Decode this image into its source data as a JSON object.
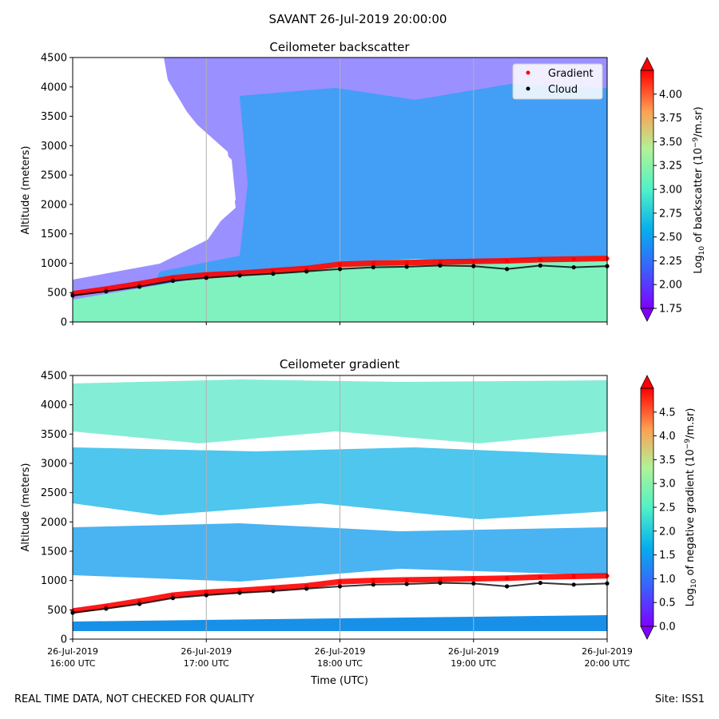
{
  "figure": {
    "title": "SAVANT 26-Jul-2019 20:00:00",
    "note": "REAL TIME DATA, NOT CHECKED FOR QUALITY",
    "site": "Site: ISS1"
  },
  "colors": {
    "gradient_marker": "#ff0000",
    "cloud_marker": "#000000",
    "grid": "#b0b0b0"
  },
  "chart_data": [
    {
      "type": "heatmap",
      "title": "Ceilometer backscatter",
      "ylabel": "Altitude (meters)",
      "xlabel": "",
      "ylim": [
        0,
        4500
      ],
      "yticks": [
        "0",
        "500",
        "1000",
        "1500",
        "2000",
        "2500",
        "3000",
        "3500",
        "4000",
        "4500"
      ],
      "xlim_hours_utc": [
        16,
        20
      ],
      "xtick_labels": [],
      "legend": {
        "position": "top-right",
        "entries": [
          "Gradient",
          "Cloud"
        ]
      },
      "colorbar": {
        "label": "Log10 of backscatter (10^-9/m.sr)",
        "label_main": "Log",
        "label_sub": "10",
        "label_rest1": " of backscatter (10",
        "label_sup": "−9",
        "label_rest2": "/m.sr)",
        "min": 1.75,
        "max": 4.25,
        "ticks": [
          "1.75",
          "2.00",
          "2.25",
          "2.50",
          "2.75",
          "3.00",
          "3.25",
          "3.50",
          "3.75",
          "4.00"
        ]
      },
      "series": [
        {
          "name": "Gradient",
          "kind": "points",
          "x": [
            16.0,
            16.25,
            16.5,
            16.75,
            17.0,
            17.25,
            17.5,
            17.75,
            18.0,
            18.25,
            18.5,
            18.75,
            19.0,
            19.25,
            19.5,
            19.75,
            20.0
          ],
          "y": [
            480,
            560,
            650,
            750,
            800,
            830,
            870,
            910,
            980,
            1000,
            1010,
            1020,
            1030,
            1040,
            1060,
            1070,
            1080
          ]
        },
        {
          "name": "Cloud",
          "kind": "points",
          "x": [
            16.0,
            16.25,
            16.5,
            16.75,
            17.0,
            17.25,
            17.5,
            17.75,
            18.0,
            18.25,
            18.5,
            18.75,
            19.0,
            19.25,
            19.5,
            19.75,
            20.0
          ],
          "y": [
            450,
            520,
            600,
            700,
            750,
            790,
            820,
            860,
            900,
            930,
            940,
            960,
            950,
            900,
            960,
            930,
            950
          ]
        }
      ]
    },
    {
      "type": "heatmap",
      "title": "Ceilometer gradient",
      "ylabel": "Altitude (meters)",
      "xlabel": "Time (UTC)",
      "ylim": [
        0,
        4500
      ],
      "yticks": [
        "0",
        "500",
        "1000",
        "1500",
        "2000",
        "2500",
        "3000",
        "3500",
        "4000",
        "4500"
      ],
      "xlim_hours_utc": [
        16,
        20
      ],
      "xtick_labels": [
        [
          "26-Jul-2019",
          "16:00 UTC"
        ],
        [
          "26-Jul-2019",
          "17:00 UTC"
        ],
        [
          "26-Jul-2019",
          "18:00 UTC"
        ],
        [
          "26-Jul-2019",
          "19:00 UTC"
        ],
        [
          "26-Jul-2019",
          "20:00 UTC"
        ]
      ],
      "colorbar": {
        "label": "Log10 of negative gradient (10^-9/m.sr)",
        "label_main": "Log",
        "label_sub": "10",
        "label_rest1": " of negative gradient (10",
        "label_sup": "−9",
        "label_rest2": "/m.sr)",
        "min": 0.0,
        "max": 5.0,
        "ticks": [
          "0.0",
          "0.5",
          "1.0",
          "1.5",
          "2.0",
          "2.5",
          "3.0",
          "3.5",
          "4.0",
          "4.5"
        ]
      },
      "series": [
        {
          "name": "Gradient",
          "kind": "points",
          "x": [
            16.0,
            16.25,
            16.5,
            16.75,
            17.0,
            17.25,
            17.5,
            17.75,
            18.0,
            18.25,
            18.5,
            18.75,
            19.0,
            19.25,
            19.5,
            19.75,
            20.0
          ],
          "y": [
            480,
            560,
            650,
            750,
            800,
            830,
            870,
            910,
            980,
            1000,
            1010,
            1020,
            1030,
            1040,
            1060,
            1070,
            1080
          ]
        },
        {
          "name": "Cloud",
          "kind": "points",
          "x": [
            16.0,
            16.25,
            16.5,
            16.75,
            17.0,
            17.25,
            17.5,
            17.75,
            18.0,
            18.25,
            18.5,
            18.75,
            19.0,
            19.25,
            19.5,
            19.75,
            20.0
          ],
          "y": [
            450,
            520,
            600,
            700,
            750,
            790,
            820,
            860,
            900,
            930,
            940,
            960,
            950,
            900,
            960,
            930,
            950
          ]
        }
      ]
    }
  ]
}
